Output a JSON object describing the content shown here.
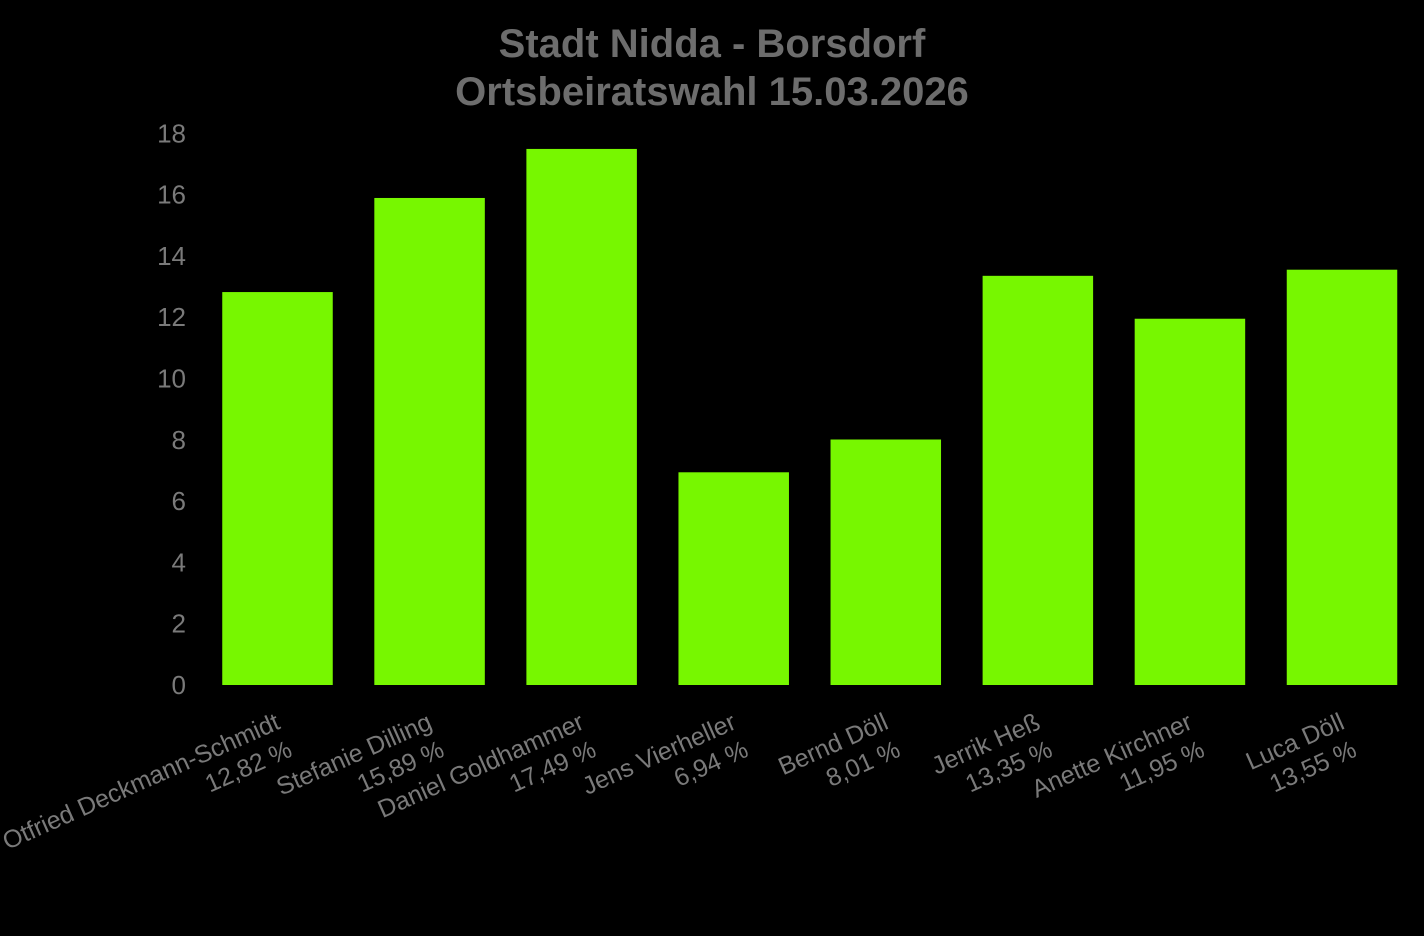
{
  "chart_data": {
    "type": "bar",
    "title": "Stadt Nidda - Borsdorf",
    "subtitle": "Ortsbeiratswahl 15.03.2026",
    "categories": [
      "Otfried Deckmann-Schmidt",
      "Stefanie Dilling",
      "Daniel Goldhammer",
      "Jens Vierheller",
      "Bernd Döll",
      "Jerrik Heß",
      "Anette Kirchner",
      "Luca Döll"
    ],
    "value_labels": [
      "12,82 %",
      "15,89 %",
      "17,49 %",
      "6,94 %",
      "8,01 %",
      "13,35 %",
      "11,95 %",
      "13,55 %"
    ],
    "values": [
      12.82,
      15.89,
      17.49,
      6.94,
      8.01,
      13.35,
      11.95,
      13.55
    ],
    "xlabel": "",
    "ylabel": "",
    "ylim": [
      0,
      18
    ],
    "yticks": [
      0,
      2,
      4,
      6,
      8,
      10,
      12,
      14,
      16,
      18
    ],
    "grid": false,
    "legend": false
  },
  "colors": {
    "background": "#000000",
    "bar": "#77f700",
    "title_text": "#6d6d6d",
    "axis_text": "#7a7a7a"
  }
}
